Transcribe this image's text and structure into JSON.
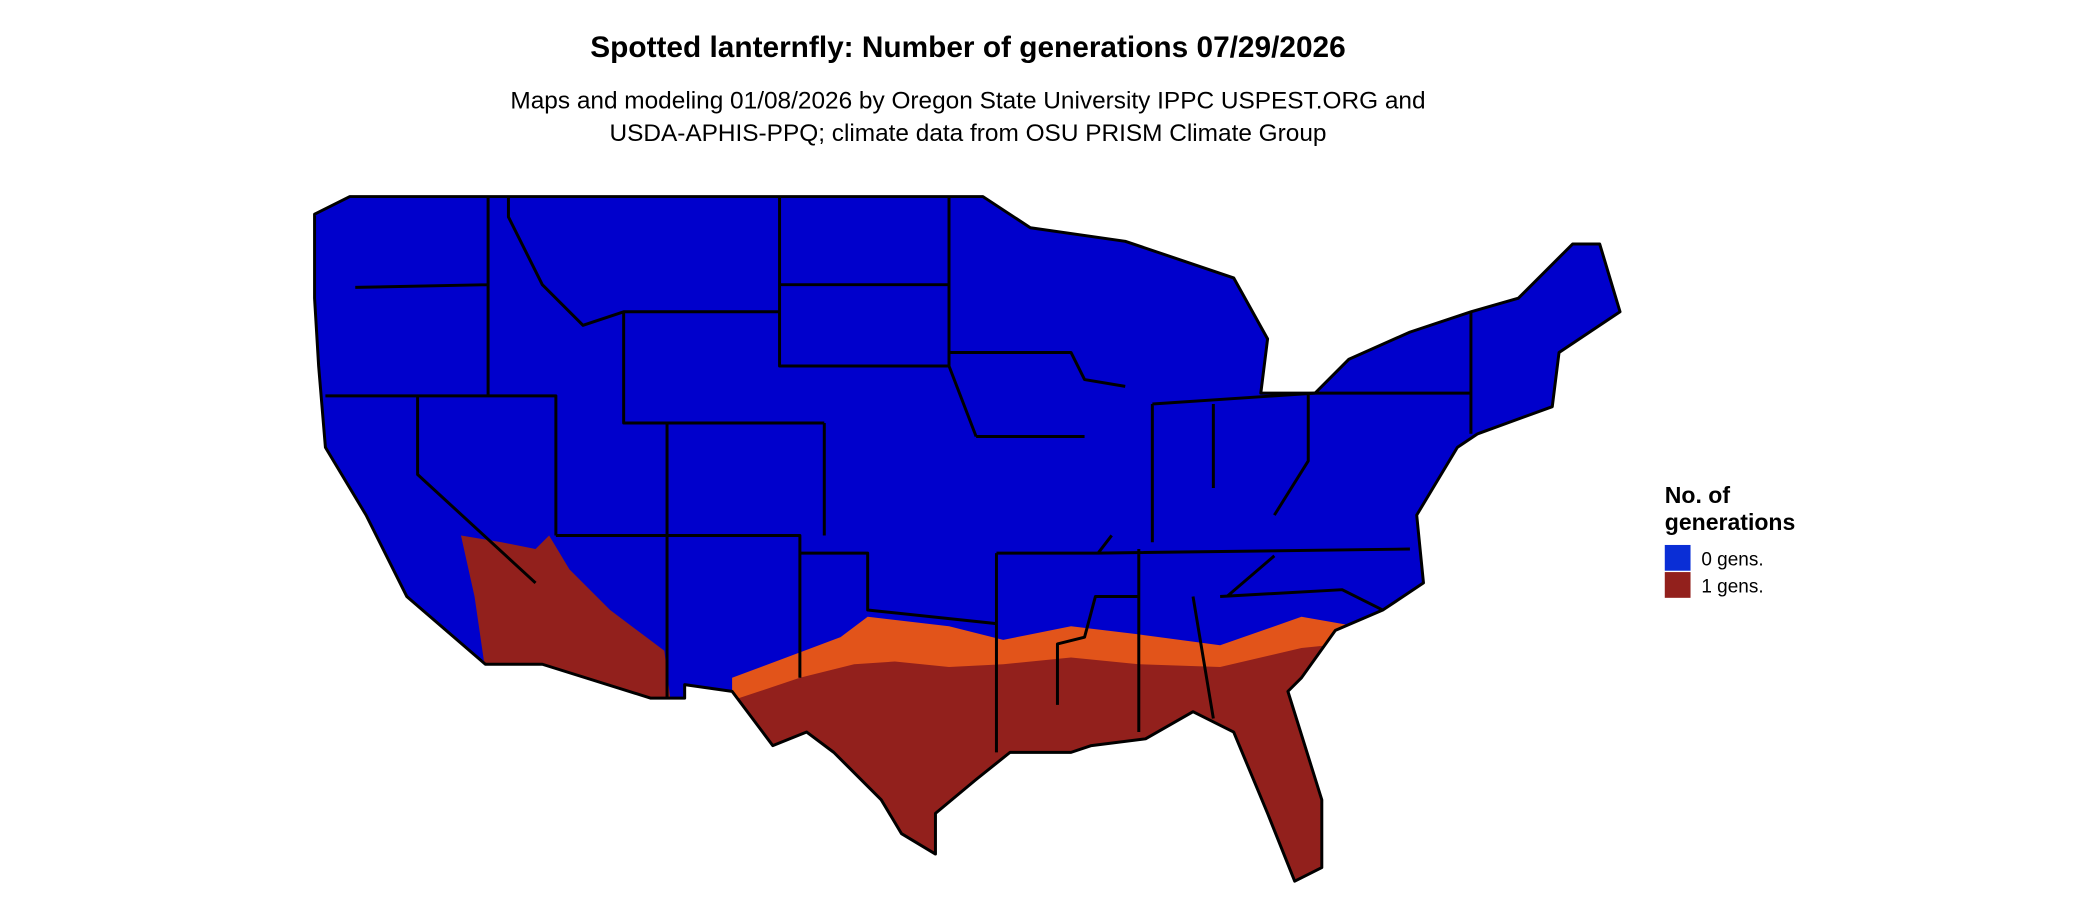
{
  "header": {
    "title": "Spotted lanternfly: Number of generations 07/29/2026",
    "subtitle": [
      "Maps and modeling 01/08/2026 by Oregon State University IPPC USPEST.ORG and",
      "USDA-APHIS-PPQ; climate data from OSU PRISM Climate Group"
    ]
  },
  "legend": {
    "title": [
      "No. of",
      "generations"
    ],
    "items": [
      {
        "label": "0 gens.",
        "color": "#0a2ed6"
      },
      {
        "label": "1 gens.",
        "color": "#92201c"
      }
    ]
  }
}
